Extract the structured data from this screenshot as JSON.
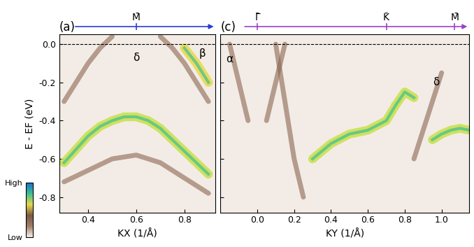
{
  "chart_data": [
    {
      "type": "line",
      "panel_label": "(a)",
      "xlabel": "KX (1/Å)",
      "ylabel": "E - EF (eV)",
      "xlim": [
        0.28,
        0.93
      ],
      "xticks": [
        0.4,
        0.6,
        0.8
      ],
      "ylim": [
        -0.88,
        0.05
      ],
      "yticks": [
        -0.8,
        -0.6,
        -0.4,
        -0.2,
        {
          "value": 0,
          "label": "0.0"
        }
      ],
      "tick_labels": true,
      "fermi_level": 0,
      "path_color": "#2b3bd8",
      "path_points": [
        {
          "label": "M̄",
          "x": 0.6
        }
      ],
      "annotations": [
        {
          "text": "δ",
          "x": 0.6,
          "y": -0.07
        },
        {
          "text": "β",
          "x": 0.875,
          "y": -0.05
        }
      ],
      "series": [
        {
          "color": "#c9e04a",
          "x": [
            0.3,
            0.35,
            0.4,
            0.45,
            0.5,
            0.55,
            0.6,
            0.65,
            0.7,
            0.75,
            0.8,
            0.85,
            0.9
          ],
          "values": [
            -0.62,
            -0.55,
            -0.48,
            -0.43,
            -0.4,
            -0.38,
            -0.38,
            -0.4,
            -0.44,
            -0.5,
            -0.56,
            -0.62,
            -0.68
          ]
        },
        {
          "color": "#8b6650",
          "x": [
            0.3,
            0.35,
            0.4,
            0.45,
            0.5
          ],
          "values": [
            -0.3,
            -0.2,
            -0.1,
            -0.02,
            0.04
          ]
        },
        {
          "color": "#8b6650",
          "x": [
            0.7,
            0.75,
            0.8,
            0.85,
            0.9
          ],
          "values": [
            0.04,
            -0.02,
            -0.1,
            -0.2,
            -0.3
          ]
        },
        {
          "color": "#e8d84a",
          "x": [
            0.8,
            0.85,
            0.9
          ],
          "values": [
            -0.02,
            -0.1,
            -0.2
          ]
        },
        {
          "color": "#8b6650",
          "x": [
            0.3,
            0.4,
            0.5,
            0.6,
            0.7,
            0.8,
            0.9
          ],
          "values": [
            -0.72,
            -0.66,
            -0.6,
            -0.58,
            -0.62,
            -0.7,
            -0.78
          ]
        }
      ],
      "colorbar": {
        "range": [
          0,
          1
        ],
        "ticks": [
          {
            "value": 0,
            "label": "Low"
          },
          {
            "value": 1,
            "label": "High"
          }
        ]
      }
    },
    {
      "type": "line",
      "panel_label": "(c)",
      "xlabel": "KY (1/Å)",
      "xlim": [
        -0.2,
        1.15
      ],
      "xticks": [
        {
          "value": 0,
          "label": "0.0"
        },
        0.2,
        0.4,
        0.6,
        0.8,
        {
          "value": 1,
          "label": "1.0"
        }
      ],
      "ylim": [
        -0.88,
        0.05
      ],
      "yticks": [
        -0.8,
        -0.6,
        -0.4,
        -0.2,
        {
          "value": 0,
          "label": "0.0"
        }
      ],
      "tick_labels": "x",
      "fermi_level": 0,
      "path_color": "#9b3fd0",
      "path_points": [
        {
          "label": "Γ̄",
          "x": 0.0
        },
        {
          "label": "K̄",
          "x": 0.7
        },
        {
          "label": "M̄",
          "x": 1.07
        }
      ],
      "annotations": [
        {
          "text": "α",
          "x": -0.15,
          "y": -0.08
        },
        {
          "text": "δ",
          "x": 0.97,
          "y": -0.2
        }
      ],
      "series": [
        {
          "color": "#c9e04a",
          "x": [
            0.3,
            0.4,
            0.5,
            0.6,
            0.7,
            0.75,
            0.8,
            0.85
          ],
          "values": [
            -0.6,
            -0.52,
            -0.47,
            -0.45,
            -0.4,
            -0.32,
            -0.25,
            -0.28
          ]
        },
        {
          "color": "#c9e04a",
          "x": [
            0.95,
            1.0,
            1.05,
            1.1,
            1.15
          ],
          "values": [
            -0.5,
            -0.47,
            -0.45,
            -0.44,
            -0.45
          ]
        },
        {
          "color": "#8b6650",
          "x": [
            -0.15,
            -0.1,
            -0.05
          ],
          "values": [
            0.0,
            -0.2,
            -0.4
          ]
        },
        {
          "color": "#8b6650",
          "x": [
            0.05,
            0.1,
            0.15
          ],
          "values": [
            -0.4,
            -0.2,
            0.0
          ]
        },
        {
          "color": "#8b6650",
          "x": [
            0.1,
            0.15,
            0.2,
            0.25
          ],
          "values": [
            0.0,
            -0.3,
            -0.6,
            -0.8
          ]
        },
        {
          "color": "#8b6650",
          "x": [
            0.85,
            0.9,
            0.95,
            1.0
          ],
          "values": [
            -0.6,
            -0.45,
            -0.3,
            -0.15
          ]
        }
      ]
    }
  ]
}
